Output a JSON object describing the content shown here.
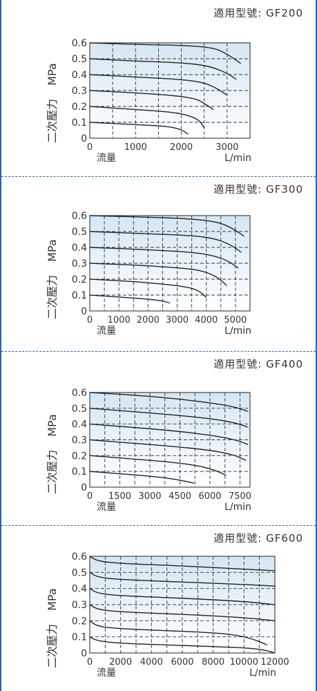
{
  "theme": {
    "border": "#2a63a8",
    "curve": "#222222",
    "grid": "#333333",
    "plot_top": "#d5e6f3",
    "plot_bottom": "#ffffff"
  },
  "chart_data": [
    {
      "type": "line",
      "model_label": "適用型號: GF200",
      "xlabel": "流量",
      "xunit": "L/min",
      "ylabel": "二次壓力",
      "yunit": "MPa",
      "xlim": [
        0,
        3500
      ],
      "ylim": [
        0,
        0.6
      ],
      "x_ticks": [
        0,
        1000,
        2000,
        3000
      ],
      "x_tick_labels": [
        "0",
        "1000",
        "2000",
        "3000"
      ],
      "x_grid": [
        500,
        1000,
        1500,
        2000,
        2500,
        3000
      ],
      "y_ticks": [
        0,
        0.1,
        0.2,
        0.3,
        0.4,
        0.5,
        0.6
      ],
      "y_tick_labels": [
        "0",
        "0.1",
        "0.2",
        "0.3",
        "0.4",
        "0.5",
        "0.6"
      ],
      "grid": true,
      "series": [
        {
          "x": [
            0,
            1000,
            2000,
            2700,
            3000,
            3300
          ],
          "y": [
            0.6,
            0.59,
            0.585,
            0.57,
            0.53,
            0.47
          ]
        },
        {
          "x": [
            0,
            1000,
            2000,
            2600,
            3000,
            3200
          ],
          "y": [
            0.5,
            0.485,
            0.475,
            0.455,
            0.41,
            0.37
          ]
        },
        {
          "x": [
            0,
            1000,
            2000,
            2500,
            2800,
            3000
          ],
          "y": [
            0.4,
            0.385,
            0.37,
            0.35,
            0.31,
            0.27
          ]
        },
        {
          "x": [
            0,
            1000,
            1800,
            2300,
            2500,
            2700
          ],
          "y": [
            0.3,
            0.285,
            0.27,
            0.25,
            0.22,
            0.18
          ]
        },
        {
          "x": [
            0,
            1000,
            1800,
            2200,
            2400,
            2500
          ],
          "y": [
            0.2,
            0.18,
            0.165,
            0.14,
            0.11,
            0.065
          ]
        },
        {
          "x": [
            0,
            1000,
            1700,
            2000,
            2150
          ],
          "y": [
            0.1,
            0.085,
            0.075,
            0.055,
            0.025
          ]
        }
      ]
    },
    {
      "type": "line",
      "model_label": "適用型號: GF300",
      "xlabel": "流量",
      "xunit": "L/min",
      "ylabel": "二次壓力",
      "yunit": "MPa",
      "xlim": [
        0,
        5500
      ],
      "ylim": [
        0,
        0.6
      ],
      "x_ticks": [
        0,
        1000,
        2000,
        3000,
        4000,
        5000
      ],
      "x_tick_labels": [
        "0",
        "1000",
        "2000",
        "3000",
        "4000",
        "5000"
      ],
      "x_grid": [
        500,
        1000,
        1500,
        2000,
        2500,
        3000,
        3500,
        4000,
        4500,
        5000
      ],
      "y_ticks": [
        0,
        0.1,
        0.2,
        0.3,
        0.4,
        0.5,
        0.6
      ],
      "y_tick_labels": [
        "0",
        "0.1",
        "0.2",
        "0.3",
        "0.4",
        "0.5",
        "0.6"
      ],
      "grid": true,
      "series": [
        {
          "x": [
            0,
            2000,
            3500,
            4400,
            4900,
            5300
          ],
          "y": [
            0.6,
            0.59,
            0.58,
            0.56,
            0.52,
            0.47
          ]
        },
        {
          "x": [
            0,
            2000,
            3500,
            4300,
            4800,
            5200
          ],
          "y": [
            0.5,
            0.485,
            0.475,
            0.455,
            0.42,
            0.37
          ]
        },
        {
          "x": [
            0,
            2000,
            3500,
            4200,
            4700,
            5100
          ],
          "y": [
            0.4,
            0.385,
            0.37,
            0.35,
            0.32,
            0.27
          ]
        },
        {
          "x": [
            0,
            2000,
            3500,
            4000,
            4400,
            4700
          ],
          "y": [
            0.3,
            0.285,
            0.265,
            0.245,
            0.21,
            0.16
          ]
        },
        {
          "x": [
            0,
            1500,
            2800,
            3500,
            3800,
            4000
          ],
          "y": [
            0.2,
            0.185,
            0.165,
            0.145,
            0.12,
            0.085
          ]
        },
        {
          "x": [
            0,
            1000,
            2000,
            2500,
            2750
          ],
          "y": [
            0.1,
            0.088,
            0.075,
            0.063,
            0.05
          ]
        }
      ]
    },
    {
      "type": "line",
      "model_label": "適用型號: GF400",
      "xlabel": "流量",
      "xunit": "L/min",
      "ylabel": "二次壓力",
      "yunit": "MPa",
      "xlim": [
        0,
        8000
      ],
      "ylim": [
        0,
        0.6
      ],
      "x_ticks": [
        0,
        1500,
        3000,
        4500,
        6000,
        7500
      ],
      "x_tick_labels": [
        "0",
        "1500",
        "3000",
        "4500",
        "6000",
        "7500"
      ],
      "x_grid": [
        750,
        1500,
        2250,
        3000,
        3750,
        4500,
        5250,
        6000,
        6750,
        7500
      ],
      "y_ticks": [
        0,
        0.1,
        0.2,
        0.3,
        0.4,
        0.5,
        0.6
      ],
      "y_tick_labels": [
        "0",
        "0.1",
        "0.2",
        "0.3",
        "0.4",
        "0.5",
        "0.6"
      ],
      "grid": true,
      "series": [
        {
          "x": [
            0,
            2000,
            4000,
            6000,
            7200,
            7900
          ],
          "y": [
            0.6,
            0.585,
            0.565,
            0.535,
            0.51,
            0.48
          ]
        },
        {
          "x": [
            0,
            2000,
            4000,
            6000,
            7200,
            7900
          ],
          "y": [
            0.5,
            0.48,
            0.46,
            0.435,
            0.41,
            0.38
          ]
        },
        {
          "x": [
            0,
            2000,
            4000,
            6000,
            7300,
            7900
          ],
          "y": [
            0.4,
            0.38,
            0.36,
            0.33,
            0.3,
            0.27
          ]
        },
        {
          "x": [
            0,
            2000,
            4000,
            6000,
            7200,
            7800
          ],
          "y": [
            0.3,
            0.28,
            0.26,
            0.235,
            0.205,
            0.17
          ]
        },
        {
          "x": [
            0,
            2000,
            4000,
            5500,
            6300,
            6800
          ],
          "y": [
            0.2,
            0.18,
            0.16,
            0.135,
            0.105,
            0.075
          ]
        },
        {
          "x": [
            0,
            1500,
            3000,
            4000,
            4700,
            5200
          ],
          "y": [
            0.1,
            0.085,
            0.07,
            0.055,
            0.04,
            0.025
          ]
        }
      ]
    },
    {
      "type": "line",
      "model_label": "適用型號: GF600",
      "xlabel": "流量",
      "xunit": "L/min",
      "ylabel": "二次壓力",
      "yunit": "MPa",
      "xlim": [
        0,
        12000
      ],
      "ylim": [
        0,
        0.6
      ],
      "x_ticks": [
        0,
        2000,
        4000,
        6000,
        8000,
        10000,
        12000
      ],
      "x_tick_labels": [
        "0",
        "2000",
        "4000",
        "6000",
        "8000",
        "10000",
        "12000"
      ],
      "x_grid": [
        1000,
        2000,
        3000,
        4000,
        5000,
        6000,
        7000,
        8000,
        9000,
        10000,
        11000
      ],
      "y_ticks": [
        0,
        0.1,
        0.2,
        0.3,
        0.4,
        0.5,
        0.6
      ],
      "y_tick_labels": [
        "0",
        "0.1",
        "0.2",
        "0.3",
        "0.4",
        "0.5",
        "0.6"
      ],
      "grid": true,
      "series": [
        {
          "x": [
            0,
            500,
            2000,
            6000,
            10000,
            12000
          ],
          "y": [
            0.6,
            0.57,
            0.555,
            0.54,
            0.52,
            0.51
          ]
        },
        {
          "x": [
            0,
            500,
            2000,
            6000,
            10000,
            12000
          ],
          "y": [
            0.5,
            0.47,
            0.455,
            0.44,
            0.425,
            0.415
          ]
        },
        {
          "x": [
            0,
            500,
            2000,
            6000,
            10000,
            12000
          ],
          "y": [
            0.4,
            0.37,
            0.355,
            0.34,
            0.32,
            0.3
          ]
        },
        {
          "x": [
            0,
            500,
            2000,
            6000,
            10000,
            12000
          ],
          "y": [
            0.3,
            0.27,
            0.255,
            0.24,
            0.22,
            0.2
          ]
        },
        {
          "x": [
            0,
            500,
            2000,
            6000,
            9000,
            10500,
            11500
          ],
          "y": [
            0.2,
            0.165,
            0.15,
            0.135,
            0.12,
            0.09,
            0.05
          ]
        },
        {
          "x": [
            0,
            500,
            2000,
            5000,
            8000,
            10500,
            11500,
            12000
          ],
          "y": [
            0.1,
            0.075,
            0.06,
            0.05,
            0.04,
            0.03,
            0.015,
            0.0
          ]
        }
      ]
    }
  ]
}
